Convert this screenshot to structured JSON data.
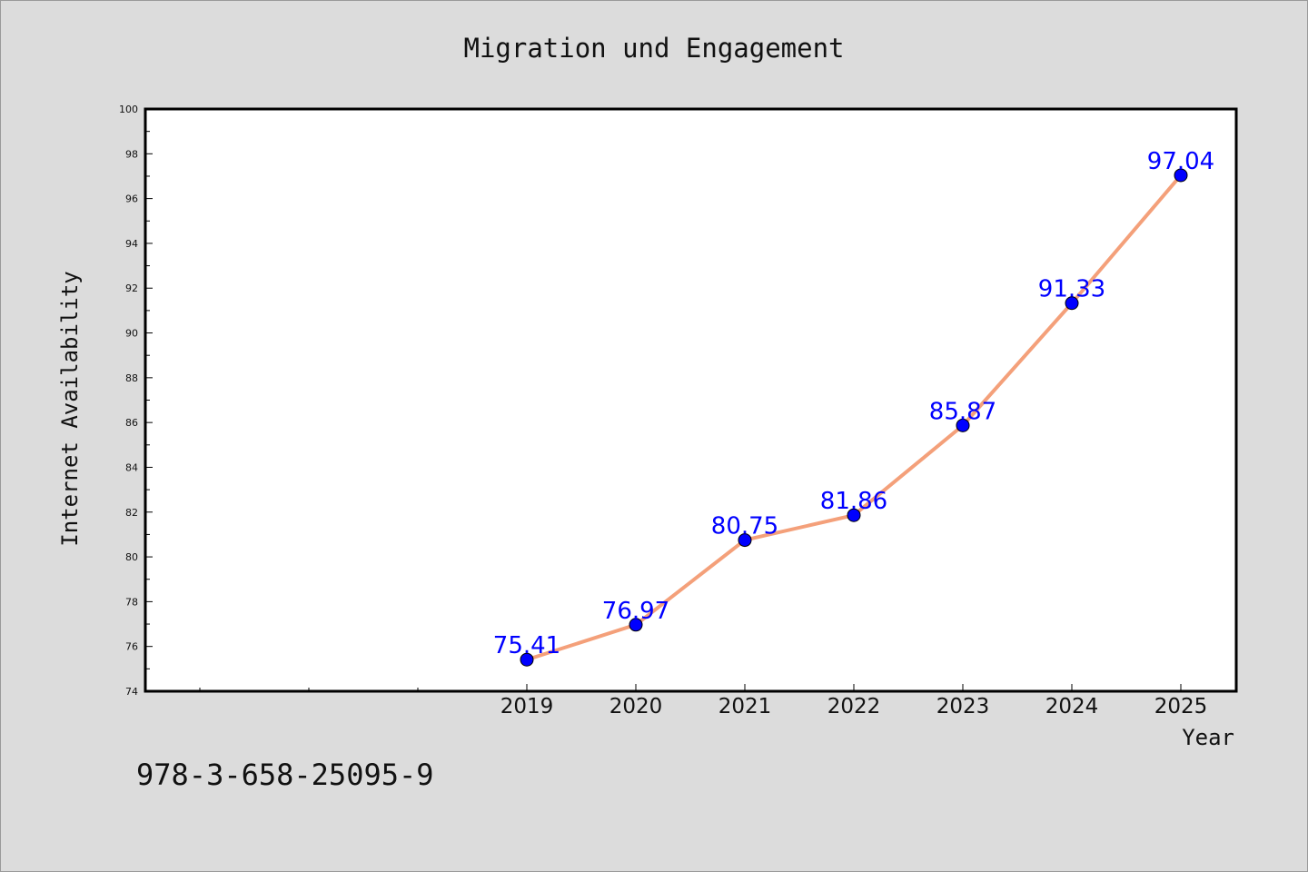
{
  "chart_data": {
    "type": "line",
    "title": "Migration und Engagement",
    "xlabel": "Year",
    "ylabel": "Internet Availability",
    "categories": [
      "2019",
      "2020",
      "2021",
      "2022",
      "2023",
      "2024",
      "2025"
    ],
    "series": [
      {
        "values": [
          75.41,
          76.97,
          80.75,
          81.86,
          85.87,
          91.33,
          97.04
        ],
        "data_labels": [
          "75.41",
          "76.97",
          "80.75",
          "81.86",
          "85.87",
          "91.33",
          "97.04"
        ]
      }
    ],
    "ylim": [
      74,
      100
    ],
    "yticks": [
      74,
      76,
      78,
      80,
      82,
      84,
      86,
      88,
      90,
      92,
      94,
      96,
      98,
      100
    ],
    "ytick_labels": [
      "74",
      "76",
      "78",
      "80",
      "82",
      "84",
      "86",
      "88",
      "90",
      "92",
      "94",
      "96",
      "98",
      "100"
    ],
    "grid": false,
    "colors": {
      "line": "#f4a07a",
      "marker": "#0000ff",
      "data_label": "#0000ff",
      "background": "#dcdcdc",
      "plot_area": "#ffffff"
    }
  },
  "footer_text": "978-3-658-25095-9"
}
